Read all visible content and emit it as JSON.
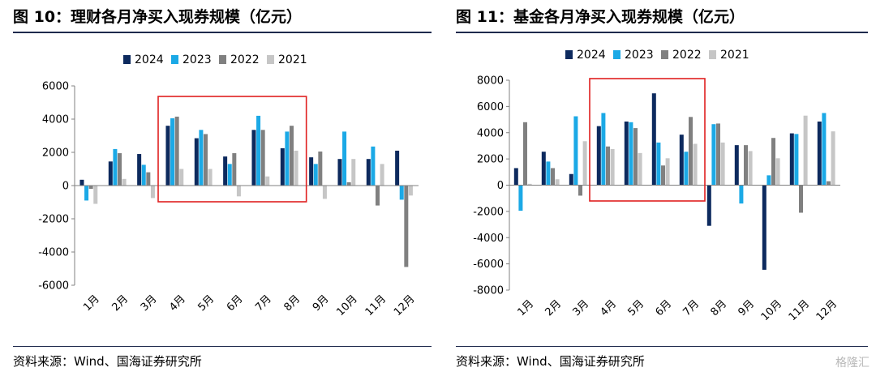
{
  "titles": {
    "left": "图 10：理财各月净买入现券规模（亿元）",
    "right": "图 11：基金各月净买入现券规模（亿元）"
  },
  "sources": {
    "left": "资料来源：Wind、国海证券研究所",
    "right": "资料来源：Wind、国海证券研究所"
  },
  "watermark": "格隆汇",
  "colors": {
    "2024": "#0d2a5e",
    "2023": "#1ba9e6",
    "2022": "#808080",
    "2021": "#c6c6c6",
    "highlight_box": "#e02020"
  },
  "chart_data": [
    {
      "type": "bar",
      "categories": [
        "1月",
        "2月",
        "3月",
        "4月",
        "5月",
        "6月",
        "7月",
        "8月",
        "9月",
        "10月",
        "11月",
        "12月"
      ],
      "series": [
        {
          "name": "2024",
          "values": [
            350,
            1450,
            1900,
            3600,
            2850,
            1750,
            3350,
            2250,
            1700,
            1600,
            1600,
            2100
          ]
        },
        {
          "name": "2023",
          "values": [
            -900,
            2200,
            1250,
            4050,
            3350,
            1300,
            4200,
            3250,
            1300,
            3250,
            2350,
            -850
          ]
        },
        {
          "name": "2022",
          "values": [
            -200,
            1950,
            800,
            4150,
            3100,
            1950,
            3350,
            3600,
            2050,
            200,
            -1200,
            -4900
          ]
        },
        {
          "name": "2021",
          "values": [
            -1100,
            400,
            -750,
            1000,
            1000,
            -650,
            550,
            2100,
            -800,
            1600,
            1300,
            -600
          ]
        }
      ],
      "ylim": [
        -6000,
        6000
      ],
      "yticks": [
        -6000,
        -4000,
        -2000,
        0,
        2000,
        4000,
        6000
      ],
      "highlight": {
        "from": "4月",
        "to": "8月"
      },
      "legend": "top-center"
    },
    {
      "type": "bar",
      "categories": [
        "1月",
        "2月",
        "3月",
        "4月",
        "5月",
        "6月",
        "7月",
        "8月",
        "9月",
        "10月",
        "11月",
        "12月"
      ],
      "series": [
        {
          "name": "2024",
          "values": [
            1300,
            2550,
            850,
            4500,
            4850,
            7000,
            3850,
            -3100,
            3050,
            -6450,
            3950,
            4850
          ]
        },
        {
          "name": "2023",
          "values": [
            -1950,
            1800,
            5250,
            5500,
            4800,
            3250,
            2550,
            4650,
            -1400,
            750,
            3900,
            5500
          ]
        },
        {
          "name": "2022",
          "values": [
            4800,
            1300,
            -800,
            2950,
            4350,
            1500,
            5200,
            4700,
            3050,
            3600,
            -2100,
            300
          ]
        },
        {
          "name": "2021",
          "values": [
            100,
            450,
            3350,
            2750,
            2450,
            2050,
            3150,
            3250,
            2600,
            2050,
            5300,
            4100
          ]
        }
      ],
      "ylim": [
        -8000,
        8000
      ],
      "yticks": [
        -8000,
        -6000,
        -4000,
        -2000,
        0,
        2000,
        4000,
        6000,
        8000
      ],
      "highlight": {
        "from": "4月",
        "to": "7月"
      },
      "legend": "top-center"
    }
  ]
}
